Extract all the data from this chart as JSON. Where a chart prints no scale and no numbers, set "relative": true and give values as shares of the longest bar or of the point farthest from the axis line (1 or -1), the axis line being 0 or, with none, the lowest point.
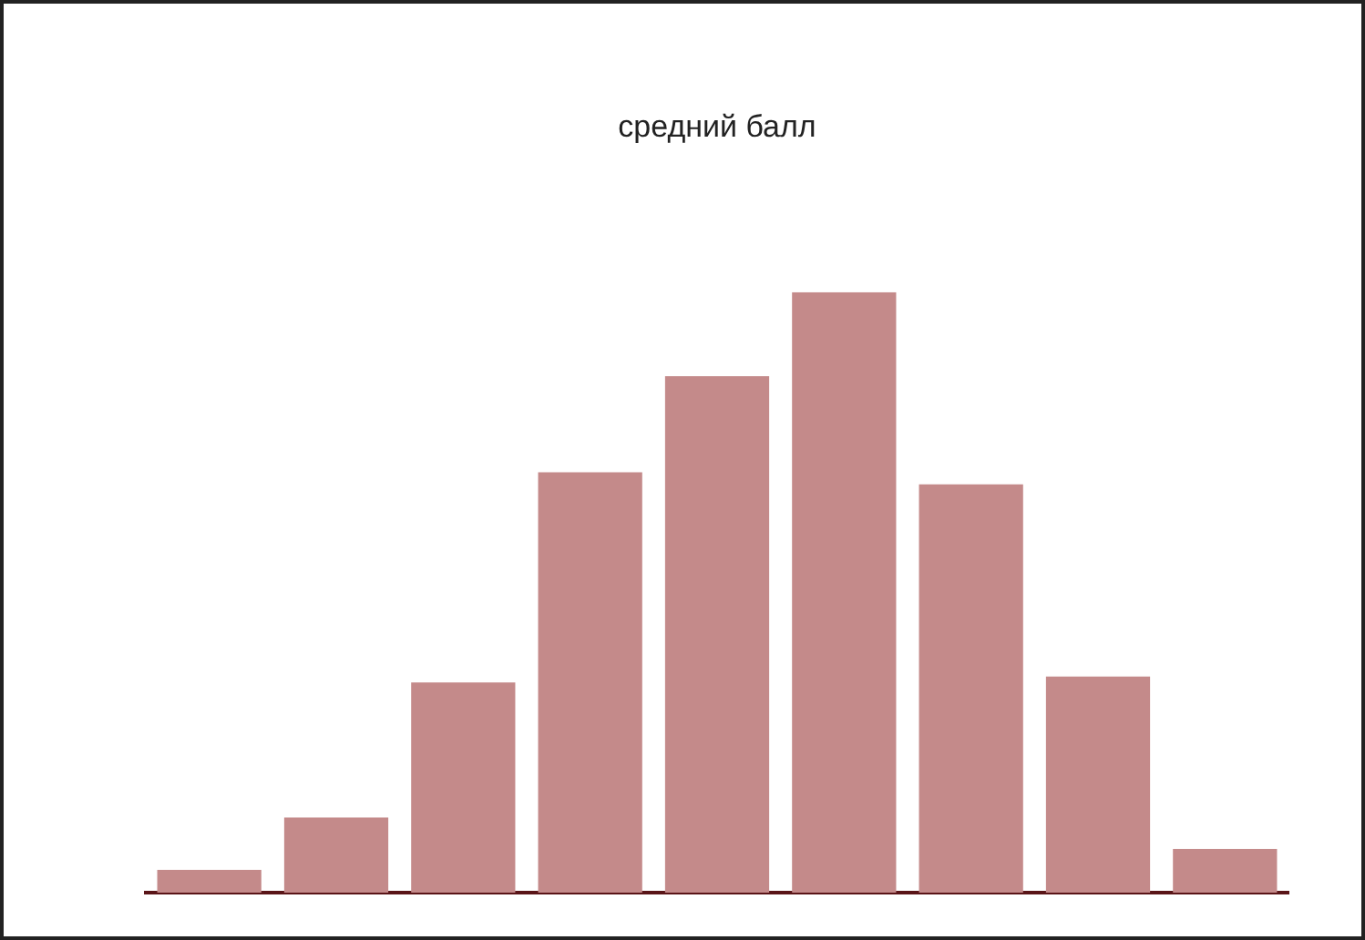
{
  "chart_data": {
    "type": "bar",
    "title": "средний балл",
    "relative": true,
    "categories": [
      null,
      null,
      null,
      null,
      null,
      null,
      null,
      null,
      null
    ],
    "values": [
      0.038,
      0.125,
      0.35,
      0.7,
      0.86,
      1,
      0.68,
      0.36,
      0.073
    ],
    "color": "#c48a8a"
  }
}
